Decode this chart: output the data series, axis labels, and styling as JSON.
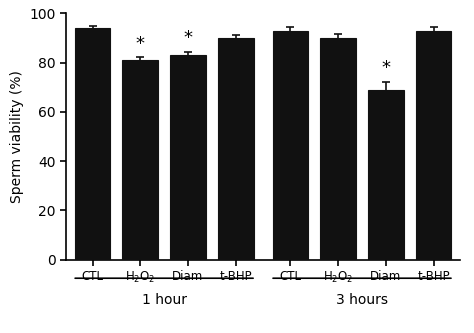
{
  "categories": [
    "CTL",
    "H$_2$O$_2$",
    "Diam",
    "t-BHP",
    "CTL",
    "H$_2$O$_2$",
    "Diam",
    "t-BHP"
  ],
  "values": [
    94.0,
    81.0,
    83.0,
    90.0,
    93.0,
    90.0,
    69.0,
    93.0
  ],
  "errors": [
    0.8,
    1.2,
    1.5,
    1.0,
    1.5,
    1.5,
    3.2,
    1.5
  ],
  "bar_color": "#111111",
  "bar_width": 0.75,
  "bar_edge_color": "#111111",
  "ylabel": "Sperm viability (%)",
  "ylim": [
    0,
    100
  ],
  "yticks": [
    0,
    20,
    40,
    60,
    80,
    100
  ],
  "significant": [
    false,
    true,
    true,
    false,
    false,
    false,
    true,
    false
  ],
  "background_color": "#ffffff",
  "tick_label_fontsize": 8.5,
  "ylabel_fontsize": 10,
  "group_label_fontsize": 10,
  "star_fontsize": 13,
  "error_capsize": 3,
  "error_color": "#111111",
  "error_linewidth": 1.2,
  "positions": [
    0,
    1,
    2,
    3,
    4.15,
    5.15,
    6.15,
    7.15
  ]
}
